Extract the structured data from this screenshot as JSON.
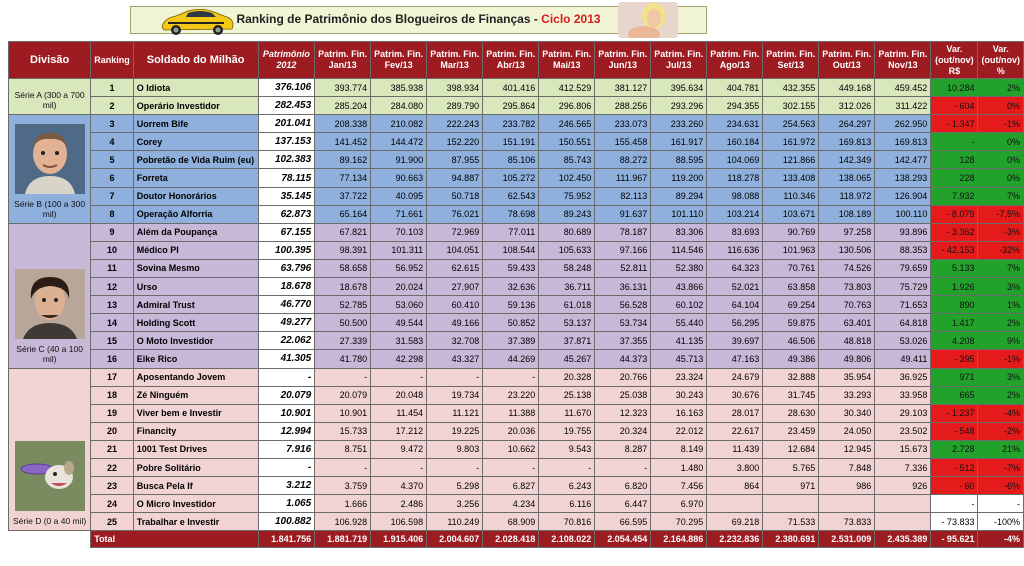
{
  "title": {
    "main": "Ranking de Patrimônio dos Blogueiros de Finanças - ",
    "cycle": "Ciclo 2013"
  },
  "headers": {
    "divisao": "Divisão",
    "ranking": "Ranking",
    "soldado": "Soldado do Milhão",
    "patrimonio": [
      "Patrimônio",
      "2012"
    ],
    "months": [
      [
        "Patrim. Fin.",
        "Jan/13"
      ],
      [
        "Patrim. Fin.",
        "Fev/13"
      ],
      [
        "Patrim. Fin.",
        "Mar/13"
      ],
      [
        "Patrim. Fin.",
        "Abr/13"
      ],
      [
        "Patrim. Fin.",
        "Mai/13"
      ],
      [
        "Patrim. Fin.",
        "Jun/13"
      ],
      [
        "Patrim. Fin.",
        "Jul/13"
      ],
      [
        "Patrim. Fin.",
        "Ago/13"
      ],
      [
        "Patrim. Fin.",
        "Set/13"
      ],
      [
        "Patrim. Fin.",
        "Out/13"
      ],
      [
        "Patrim. Fin.",
        "Nov/13"
      ]
    ],
    "var_rs": [
      "Var.",
      "(out/nov)",
      "R$"
    ],
    "var_pct": [
      "Var.",
      "(out/nov)",
      "%"
    ]
  },
  "divisions": [
    {
      "key": "A",
      "label": "Série A (300 a 700 mil)",
      "start": 0,
      "span": 2
    },
    {
      "key": "B",
      "label": "Série B (100 a 300 mil)",
      "start": 2,
      "span": 6
    },
    {
      "key": "C",
      "label": "Série C (40 a 100 mil)",
      "start": 8,
      "span": 8
    },
    {
      "key": "D",
      "label": "Série D (0 a 40 mil)",
      "start": 16,
      "span": 9
    }
  ],
  "rows": [
    {
      "rank": "1",
      "name": "O Idiota",
      "pat": "376.106",
      "m": [
        "393.774",
        "385.938",
        "398.934",
        "401.416",
        "412.529",
        "381.127",
        "395.634",
        "404.781",
        "432.355",
        "449.168",
        "459.452"
      ],
      "var": "10.284",
      "pct": "2%",
      "s": "pos"
    },
    {
      "rank": "2",
      "name": "Operário Investidor",
      "pat": "282.453",
      "m": [
        "285.204",
        "284.080",
        "289.790",
        "295.864",
        "296.806",
        "288.256",
        "293.296",
        "294.355",
        "302.155",
        "312.026",
        "311.422"
      ],
      "var": "- 604",
      "pct": "0%",
      "s": "neg"
    },
    {
      "rank": "3",
      "name": "Uorrem Bife",
      "pat": "201.041",
      "m": [
        "208.338",
        "210.082",
        "222.243",
        "233.782",
        "246.565",
        "233.073",
        "233.260",
        "234.631",
        "254.563",
        "264.297",
        "262.950"
      ],
      "var": "- 1.347",
      "pct": "-1%",
      "s": "neg"
    },
    {
      "rank": "4",
      "name": "Corey",
      "pat": "137.153",
      "m": [
        "141.452",
        "144.472",
        "152.220",
        "151.191",
        "150.551",
        "155.458",
        "161.917",
        "160.184",
        "161.972",
        "169.813",
        "169.813"
      ],
      "var": "-",
      "pct": "0%",
      "s": "pos"
    },
    {
      "rank": "5",
      "name": "Pobretão de Vida Ruim (eu)",
      "pat": "102.383",
      "m": [
        "89.162",
        "91.900",
        "87.955",
        "85.106",
        "85.743",
        "88.272",
        "88.595",
        "104.069",
        "121.866",
        "142.349",
        "142.477"
      ],
      "var": "128",
      "pct": "0%",
      "s": "pos"
    },
    {
      "rank": "6",
      "name": "Forreta",
      "pat": "78.115",
      "m": [
        "77.134",
        "90.663",
        "94.887",
        "105.272",
        "102.450",
        "111.967",
        "119.200",
        "118.278",
        "133.408",
        "138.065",
        "138.293"
      ],
      "var": "228",
      "pct": "0%",
      "s": "pos"
    },
    {
      "rank": "7",
      "name": "Doutor Honorários",
      "pat": "35.145",
      "m": [
        "37.722",
        "40.095",
        "50.718",
        "62.543",
        "75.952",
        "82.113",
        "89.294",
        "98.088",
        "110.346",
        "118.972",
        "126.904"
      ],
      "var": "7.932",
      "pct": "7%",
      "s": "pos"
    },
    {
      "rank": "8",
      "name": "Operação Alforria",
      "pat": "62.873",
      "m": [
        "65.164",
        "71.661",
        "76.021",
        "78.698",
        "89.243",
        "91.637",
        "101.110",
        "103.214",
        "103.671",
        "108.189",
        "100.110"
      ],
      "var": "- 8.079",
      "pct": "-7,5%",
      "s": "neg"
    },
    {
      "rank": "9",
      "name": "Além da Poupança",
      "pat": "67.155",
      "m": [
        "67.821",
        "70.103",
        "72.969",
        "77.011",
        "80.689",
        "78.187",
        "83.306",
        "83.693",
        "90.769",
        "97.258",
        "93.896"
      ],
      "var": "- 3.362",
      "pct": "-3%",
      "s": "neg"
    },
    {
      "rank": "10",
      "name": "Médico PI",
      "pat": "100.395",
      "m": [
        "98.391",
        "101.311",
        "104.051",
        "108.544",
        "105.633",
        "97.166",
        "114.546",
        "116.636",
        "101.963",
        "130.506",
        "88.353"
      ],
      "var": "- 42.153",
      "pct": "-32%",
      "s": "neg"
    },
    {
      "rank": "11",
      "name": "Sovina Mesmo",
      "pat": "63.796",
      "m": [
        "58.658",
        "56.952",
        "62.615",
        "59.433",
        "58.248",
        "52.811",
        "52.380",
        "64.323",
        "70.761",
        "74.526",
        "79.659"
      ],
      "var": "5.133",
      "pct": "7%",
      "s": "pos"
    },
    {
      "rank": "12",
      "name": "Urso",
      "pat": "18.678",
      "m": [
        "18.678",
        "20.024",
        "27.907",
        "32.636",
        "36.711",
        "36.131",
        "43.866",
        "52.021",
        "63.858",
        "73.803",
        "75.729"
      ],
      "var": "1.926",
      "pct": "3%",
      "s": "pos"
    },
    {
      "rank": "13",
      "name": "Admiral Trust",
      "pat": "46.770",
      "m": [
        "52.785",
        "53.060",
        "60.410",
        "59.136",
        "61.018",
        "56.528",
        "60.102",
        "64.104",
        "69.254",
        "70.763",
        "71.653"
      ],
      "var": "890",
      "pct": "1%",
      "s": "pos"
    },
    {
      "rank": "14",
      "name": "Holding Scott",
      "pat": "49.277",
      "m": [
        "50.500",
        "49.544",
        "49.166",
        "50.852",
        "53.137",
        "53.734",
        "55.440",
        "56.295",
        "59.875",
        "63.401",
        "64.818"
      ],
      "var": "1.417",
      "pct": "2%",
      "s": "pos"
    },
    {
      "rank": "15",
      "name": "O Moto Investidor",
      "pat": "22.062",
      "m": [
        "27.339",
        "31.583",
        "32.708",
        "37.389",
        "37.871",
        "37.355",
        "41.135",
        "39.697",
        "46.506",
        "48.818",
        "53.026"
      ],
      "var": "4.208",
      "pct": "9%",
      "s": "pos"
    },
    {
      "rank": "16",
      "name": "Eike Rico",
      "pat": "41.305",
      "m": [
        "41.780",
        "42.298",
        "43.327",
        "44.269",
        "45.267",
        "44.373",
        "45.713",
        "47.163",
        "49.386",
        "49.806",
        "49.411"
      ],
      "var": "- 395",
      "pct": "-1%",
      "s": "neg"
    },
    {
      "rank": "17",
      "name": "Aposentando Jovem",
      "pat": "-",
      "m": [
        "-",
        "-",
        "-",
        "-",
        "20.328",
        "20.766",
        "23.324",
        "24.679",
        "32.888",
        "35.954",
        "36.925"
      ],
      "var": "971",
      "pct": "3%",
      "s": "pos"
    },
    {
      "rank": "18",
      "name": "Zé Ninguém",
      "pat": "20.079",
      "m": [
        "20.079",
        "20.048",
        "19.734",
        "23.220",
        "25.138",
        "25.038",
        "30.243",
        "30.676",
        "31.745",
        "33.293",
        "33.958"
      ],
      "var": "665",
      "pct": "2%",
      "s": "pos"
    },
    {
      "rank": "19",
      "name": "Viver bem e Investir",
      "pat": "10.901",
      "m": [
        "10.901",
        "11.454",
        "11.121",
        "11.388",
        "11.670",
        "12.323",
        "16.163",
        "28.017",
        "28.630",
        "30.340",
        "29.103"
      ],
      "var": "- 1.237",
      "pct": "-4%",
      "s": "neg"
    },
    {
      "rank": "20",
      "name": "Financity",
      "pat": "12.994",
      "m": [
        "15.733",
        "17.212",
        "19.225",
        "20.036",
        "19.755",
        "20.324",
        "22.012",
        "22.617",
        "23.459",
        "24.050",
        "23.502"
      ],
      "var": "- 548",
      "pct": "-2%",
      "s": "neg"
    },
    {
      "rank": "21",
      "name": "1001 Test Drives",
      "pat": "7.916",
      "m": [
        "8.751",
        "9.472",
        "9.803",
        "10.662",
        "9.543",
        "8.287",
        "8.149",
        "11.439",
        "12.684",
        "12.945",
        "15.673"
      ],
      "var": "2.728",
      "pct": "21%",
      "s": "pos"
    },
    {
      "rank": "22",
      "name": "Pobre Solitário",
      "pat": "-",
      "m": [
        "-",
        "-",
        "-",
        "-",
        "-",
        "-",
        "1.480",
        "3.800",
        "5.765",
        "7.848",
        "7.336"
      ],
      "var": "- 512",
      "pct": "-7%",
      "s": "neg"
    },
    {
      "rank": "23",
      "name": "Busca Pela If",
      "pat": "3.212",
      "m": [
        "3.759",
        "4.370",
        "5.298",
        "6.827",
        "6.243",
        "6.820",
        "7.456",
        "864",
        "971",
        "986",
        "926"
      ],
      "var": "- 60",
      "pct": "-6%",
      "s": "neg"
    },
    {
      "rank": "24",
      "name": "O Micro Investidor",
      "pat": "1.065",
      "m": [
        "1.666",
        "2.486",
        "3.256",
        "4.234",
        "6.116",
        "6.447",
        "6.970",
        "",
        "",
        "",
        ""
      ],
      "var": "-",
      "pct": "-",
      "s": "neu"
    },
    {
      "rank": "25",
      "name": "Trabalhar e Investir",
      "pat": "100.882",
      "m": [
        "106.928",
        "106.598",
        "110.249",
        "68.909",
        "70.816",
        "66.595",
        "70.295",
        "69.218",
        "71.533",
        "73.833",
        ""
      ],
      "var": "- 73.833",
      "pct": "-100%",
      "s": "neu"
    }
  ],
  "total": {
    "label": "Total",
    "pat": "1.841.756",
    "m": [
      "1.881.719",
      "1.915.406",
      "2.004.607",
      "2.028.418",
      "2.108.022",
      "2.054.454",
      "2.164.886",
      "2.232.836",
      "2.380.691",
      "2.531.009",
      "2.435.389"
    ],
    "var": "- 95.621",
    "pct": "-4%"
  }
}
